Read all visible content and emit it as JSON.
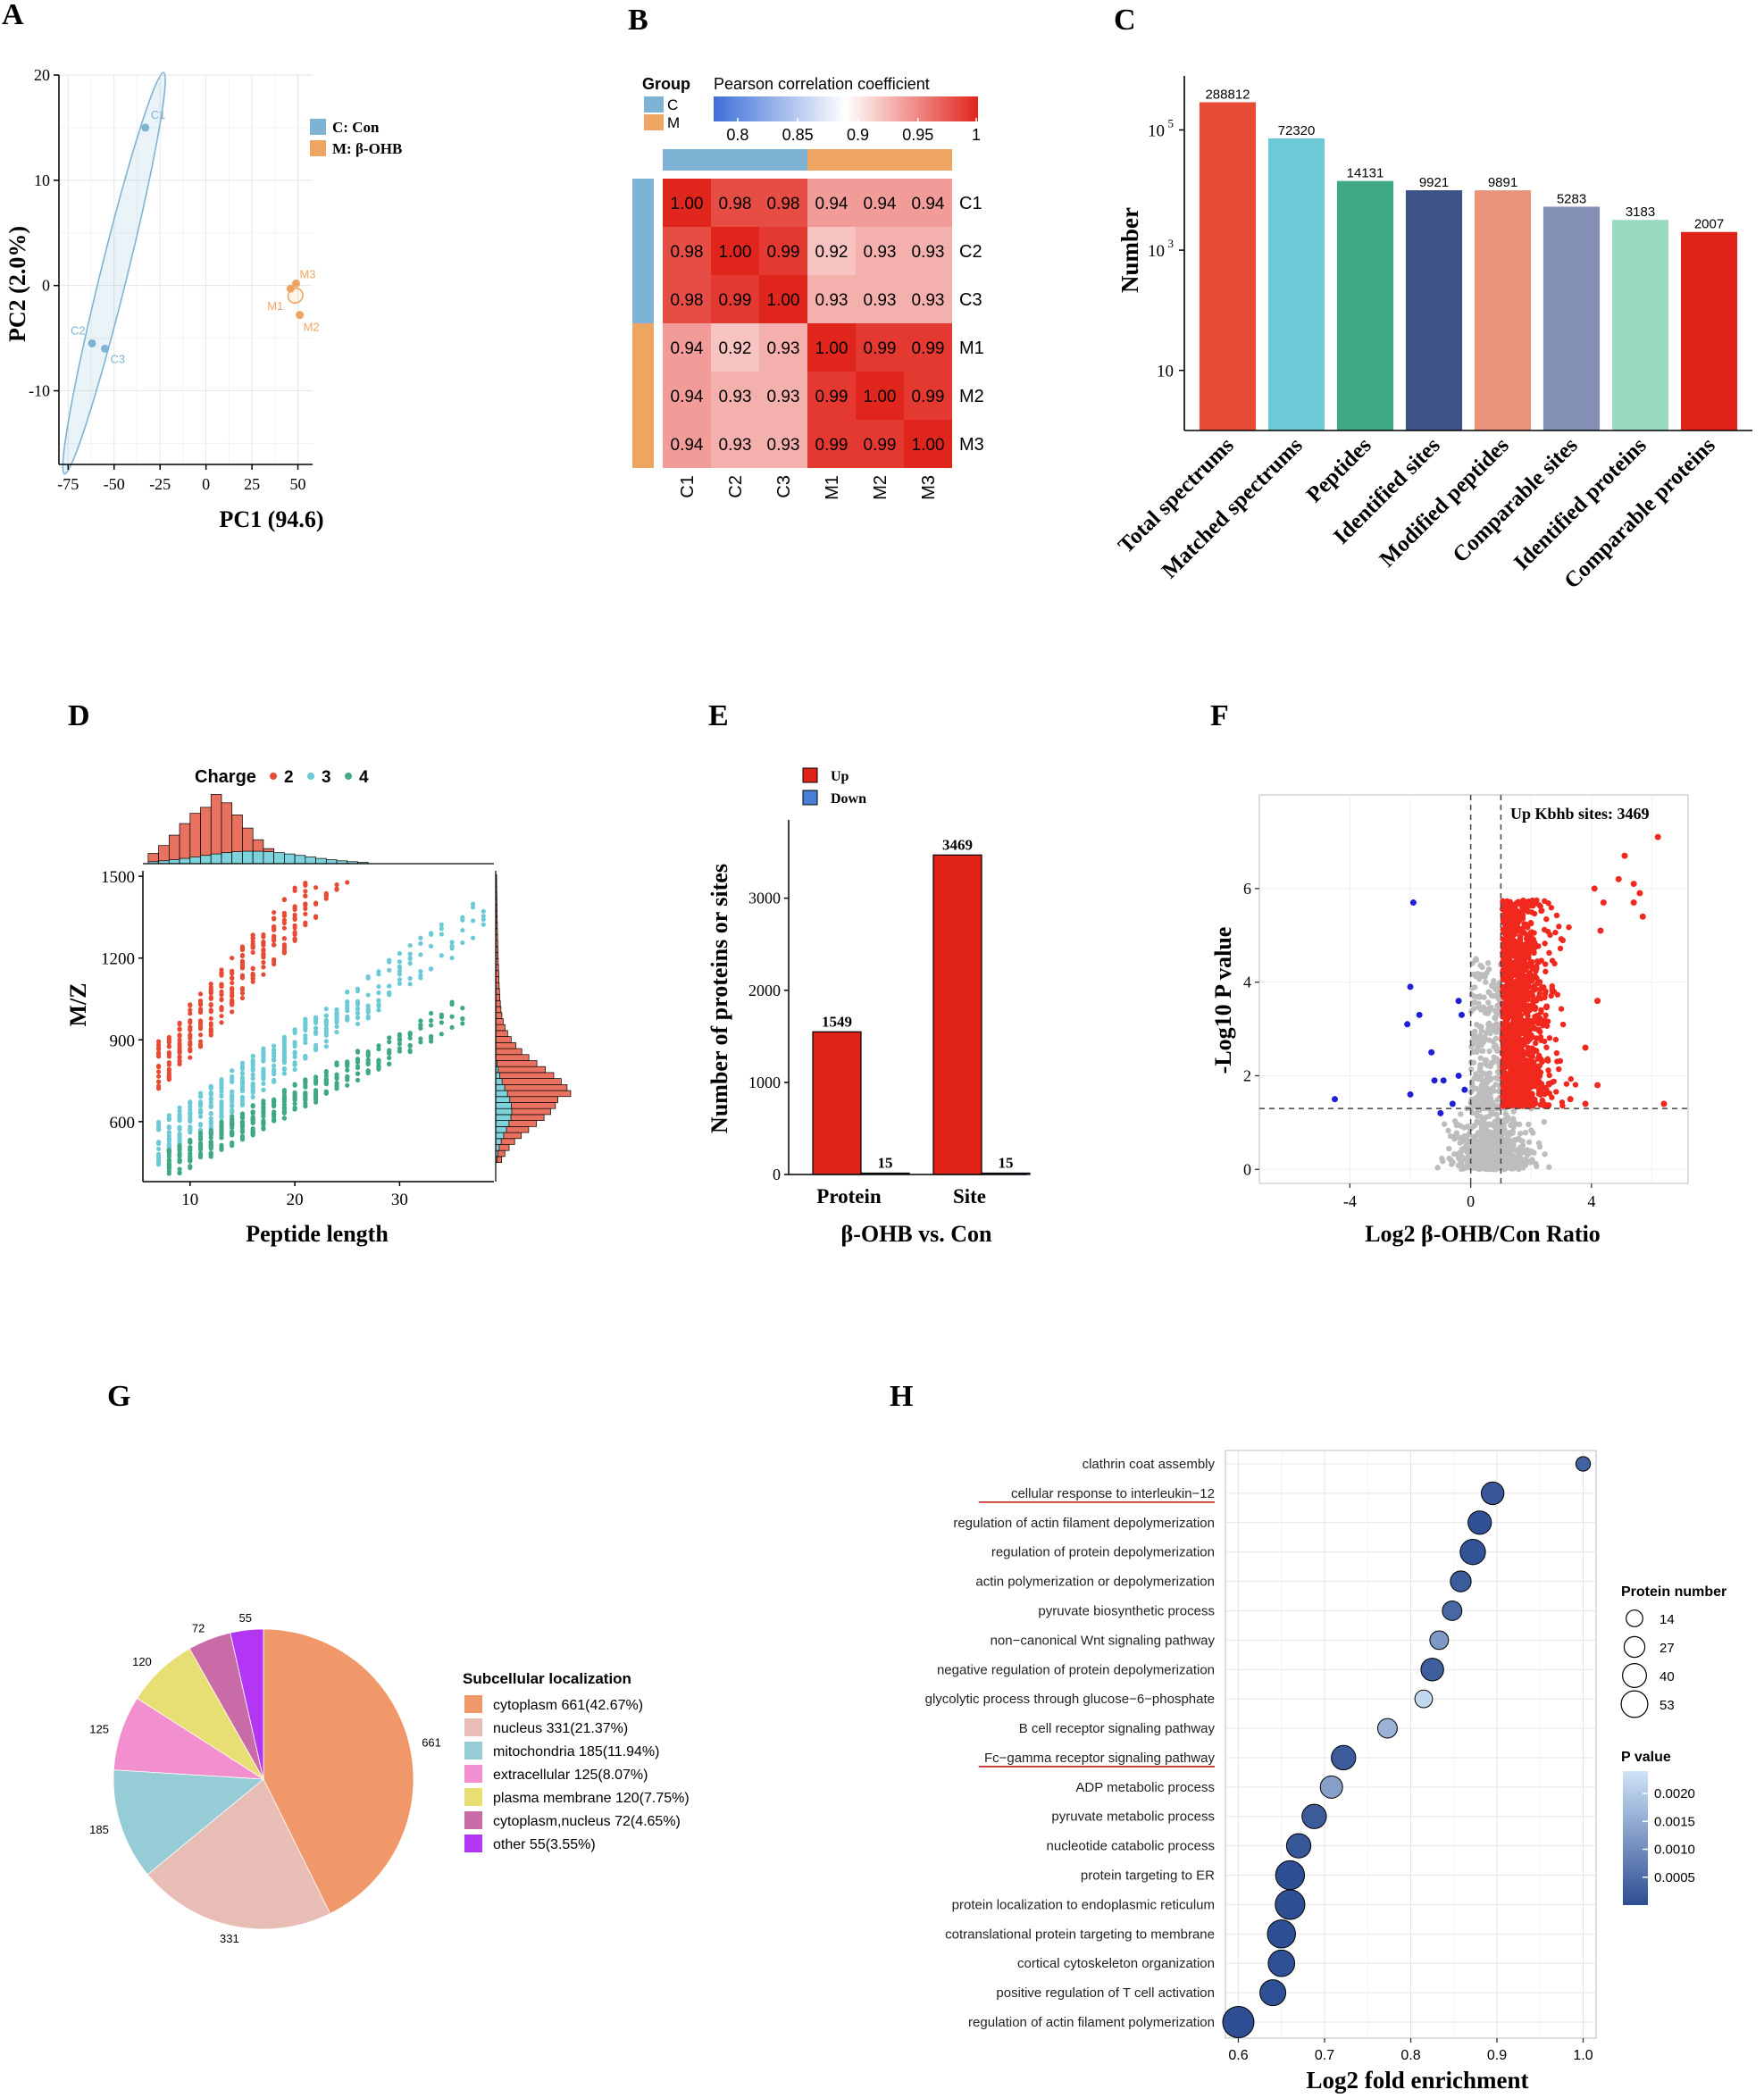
{
  "panels": {
    "A": {
      "letter": "A",
      "chart_data": {
        "type": "scatter",
        "xlabel": "PC1 (94.6)",
        "ylabel": "PC2 (2.0%)",
        "xlim": [
          -80,
          58
        ],
        "ylim": [
          -17,
          20
        ],
        "xticks": [
          -75,
          -50,
          -25,
          0,
          25,
          50
        ],
        "yticks": [
          -10,
          0,
          10,
          20
        ],
        "legend": [
          {
            "label": "C: Con",
            "color": "#7FB3D5"
          },
          {
            "label": "M: β-OHB",
            "color": "#EFA562"
          }
        ],
        "points": [
          {
            "name": "C1",
            "x": -33,
            "y": 15,
            "group": 0
          },
          {
            "name": "C2",
            "x": -62,
            "y": -5.5,
            "group": 0
          },
          {
            "name": "C3",
            "x": -55,
            "y": -6,
            "group": 0
          },
          {
            "name": "M1",
            "x": 46,
            "y": -0.3,
            "group": 1
          },
          {
            "name": "M3",
            "x": 49,
            "y": 0.2,
            "group": 1
          },
          {
            "name": "M2",
            "x": 51,
            "y": -2.8,
            "group": 1
          }
        ],
        "label_color_C": "#7FB3D5",
        "label_color_M": "#EFA562"
      }
    },
    "B": {
      "letter": "B",
      "chart_data": {
        "type": "heatmap",
        "title": "Pearson correlation coefficient",
        "group_title": "Group",
        "groups": [
          {
            "label": "C",
            "color": "#7FB3D5"
          },
          {
            "label": "M",
            "color": "#EFA562"
          }
        ],
        "colorbar_ticks": [
          "0.8",
          "0.85",
          "0.9",
          "0.95",
          "1"
        ],
        "rows": [
          "C1",
          "C2",
          "C3",
          "M1",
          "M2",
          "M3"
        ],
        "cols": [
          "C1",
          "C2",
          "C3",
          "M1",
          "M2",
          "M3"
        ],
        "values": [
          [
            "1.00",
            "0.98",
            "0.98",
            "0.94",
            "0.94",
            "0.94"
          ],
          [
            "0.98",
            "1.00",
            "0.99",
            "0.92",
            "0.93",
            "0.93"
          ],
          [
            "0.98",
            "0.99",
            "1.00",
            "0.93",
            "0.93",
            "0.93"
          ],
          [
            "0.94",
            "0.92",
            "0.93",
            "1.00",
            "0.99",
            "0.99"
          ],
          [
            "0.94",
            "0.93",
            "0.93",
            "0.99",
            "1.00",
            "0.99"
          ],
          [
            "0.94",
            "0.93",
            "0.93",
            "0.99",
            "0.99",
            "1.00"
          ]
        ]
      }
    },
    "C": {
      "letter": "C",
      "chart_data": {
        "type": "bar",
        "ylabel": "Number",
        "yscale": "log",
        "ytick_labels": [
          {
            "base": "10",
            "exp": "5",
            "value": 100000
          },
          {
            "base": "10",
            "exp": "3",
            "value": 1000
          },
          {
            "base": "10",
            "exp": "",
            "value": 10
          }
        ],
        "categories": [
          "Total spectrums",
          "Matched spectrums",
          "Peptides",
          "Identified sites",
          "Modified peptides",
          "Comparable sites",
          "Identified proteins",
          "Comparable proteins"
        ],
        "values": [
          288812,
          72320,
          14131,
          9921,
          9891,
          5283,
          3183,
          2007
        ],
        "value_labels": [
          "288812",
          "72320",
          "14131",
          "9921",
          "9891",
          "5283",
          "3183",
          "2007"
        ],
        "colors": [
          "#E64B35",
          "#6CCAD6",
          "#3FA886",
          "#3C5488",
          "#E8937A",
          "#8491B4",
          "#98DAC0",
          "#E02318"
        ]
      }
    },
    "D": {
      "letter": "D",
      "chart_data": {
        "type": "scatter",
        "xlabel": "Peptide length",
        "ylabel": "M/Z",
        "legend_title": "Charge",
        "series": [
          {
            "name": "2",
            "color": "#E64B35",
            "x_range": [
              7,
              25
            ]
          },
          {
            "name": "3",
            "color": "#6CCAD6",
            "x_range": [
              7,
              38
            ]
          },
          {
            "name": "4",
            "color": "#3FA886",
            "x_range": [
              8,
              36
            ]
          }
        ],
        "xticks": [
          "10",
          "20",
          "30"
        ],
        "yticks": [
          "600",
          "900",
          "1200",
          "1500"
        ],
        "xlim": [
          5.5,
          39
        ],
        "ylim": [
          380,
          1520
        ]
      }
    },
    "E": {
      "letter": "E",
      "chart_data": {
        "type": "bar",
        "xlabel": "β-OHB vs. Con",
        "ylabel": "Number of proteins or sites",
        "categories": [
          "Protein",
          "Site"
        ],
        "series": [
          {
            "name": "Up",
            "color": "#E02318",
            "values": [
              1549,
              3469
            ]
          },
          {
            "name": "Down",
            "color": "#4A7FD9",
            "values": [
              15,
              15
            ]
          }
        ],
        "value_labels": [
          [
            "1549",
            "3469"
          ],
          [
            "15",
            "15"
          ]
        ],
        "yticks": [
          "0",
          "1000",
          "2000",
          "3000"
        ],
        "ylim": [
          0,
          3850
        ]
      }
    },
    "F": {
      "letter": "F",
      "chart_data": {
        "type": "scatter",
        "title": "Up Kbhb sites: 3469",
        "xlabel": "Log2 β-OHB/Con Ratio",
        "ylabel": "-Log10 P value",
        "xticks": [
          "-4",
          "0",
          "4"
        ],
        "yticks": [
          "0",
          "2",
          "4",
          "6"
        ],
        "xlim": [
          -7,
          7.2
        ],
        "ylim": [
          -0.3,
          8
        ],
        "thresholds": {
          "x": [
            0,
            1
          ],
          "y": 1.3
        },
        "down_points": [
          [
            -1.9,
            5.7
          ],
          [
            -2.0,
            3.9
          ],
          [
            -2.1,
            3.1
          ],
          [
            -1.7,
            3.3
          ],
          [
            -0.4,
            3.6
          ],
          [
            -0.3,
            3.3
          ],
          [
            -1.3,
            2.5
          ],
          [
            -4.5,
            1.5
          ],
          [
            -2.0,
            1.6
          ],
          [
            -1.2,
            1.9
          ],
          [
            -0.9,
            1.9
          ],
          [
            -1.0,
            1.2
          ],
          [
            -0.4,
            2.0
          ],
          [
            -0.6,
            1.4
          ],
          [
            -0.2,
            1.7
          ]
        ],
        "up_outliers": [
          [
            6.2,
            7.1
          ],
          [
            5.1,
            6.7
          ],
          [
            4.9,
            6.2
          ],
          [
            5.4,
            6.1
          ],
          [
            5.6,
            5.9
          ],
          [
            5.4,
            5.7
          ],
          [
            4.1,
            6.0
          ],
          [
            4.4,
            5.7
          ],
          [
            4.3,
            5.1
          ],
          [
            4.2,
            3.6
          ],
          [
            3.8,
            2.6
          ],
          [
            4.2,
            1.8
          ],
          [
            3.8,
            1.4
          ],
          [
            3.3,
            1.5
          ],
          [
            6.4,
            1.4
          ],
          [
            5.7,
            5.4
          ]
        ]
      }
    },
    "G": {
      "letter": "G",
      "chart_data": {
        "type": "pie",
        "legend_title": "Subcellular localization",
        "slices": [
          {
            "label": "cytoplasm 661(42.67%)",
            "value": 661,
            "value_label": "661",
            "color": "#F0986A"
          },
          {
            "label": "nucleus 331(21.37%)",
            "value": 331,
            "value_label": "331",
            "color": "#E8BDB5"
          },
          {
            "label": "mitochondria 185(11.94%)",
            "value": 185,
            "value_label": "185",
            "color": "#96CCD6"
          },
          {
            "label": "extracellular 125(8.07%)",
            "value": 125,
            "value_label": "125",
            "color": "#F28FCF"
          },
          {
            "label": "plasma membrane 120(7.75%)",
            "value": 120,
            "value_label": "120",
            "color": "#E8DF74"
          },
          {
            "label": "cytoplasm,nucleus 72(4.65%)",
            "value": 72,
            "value_label": "72",
            "color": "#C86BA6"
          },
          {
            "label": "other 55(3.55%)",
            "value": 55,
            "value_label": "55",
            "color": "#B336F5"
          }
        ]
      }
    },
    "H": {
      "letter": "H",
      "chart_data": {
        "type": "scatter",
        "xlabel": "Log2 fold enrichment",
        "xticks": [
          "0.6",
          "0.7",
          "0.8",
          "0.9",
          "1.0"
        ],
        "xlim": [
          0.585,
          1.015
        ],
        "size_legend_title": "Protein number",
        "size_legend": [
          "14",
          "27",
          "40",
          "53"
        ],
        "color_legend_title": "P value",
        "color_ticks": [
          "0.0020",
          "0.0015",
          "0.0010",
          "0.0005"
        ],
        "terms": [
          {
            "label": "clathrin coat assembly",
            "x": 1.0,
            "n": 5,
            "p": 0.0003,
            "underline": false
          },
          {
            "label": "cellular response to interleukin−12",
            "x": 0.895,
            "n": 22,
            "p": 0.00015,
            "underline": true
          },
          {
            "label": "regulation of actin filament depolymerization",
            "x": 0.88,
            "n": 24,
            "p": 5e-05,
            "underline": false
          },
          {
            "label": "regulation of protein depolymerization",
            "x": 0.872,
            "n": 30,
            "p": 8e-05,
            "underline": false
          },
          {
            "label": "actin polymerization or depolymerization",
            "x": 0.858,
            "n": 17,
            "p": 0.0002,
            "underline": false
          },
          {
            "label": "pyruvate biosynthetic process",
            "x": 0.848,
            "n": 14,
            "p": 0.0004,
            "underline": false
          },
          {
            "label": "non−canonical Wnt signaling pathway",
            "x": 0.833,
            "n": 12,
            "p": 0.0012,
            "underline": false
          },
          {
            "label": "negative regulation of protein depolymerization",
            "x": 0.825,
            "n": 22,
            "p": 0.00025,
            "underline": false
          },
          {
            "label": "glycolytic process through glucose−6−phosphate",
            "x": 0.815,
            "n": 10,
            "p": 0.0022,
            "underline": false
          },
          {
            "label": "B cell receptor signaling pathway",
            "x": 0.773,
            "n": 14,
            "p": 0.0016,
            "underline": false
          },
          {
            "label": "Fc−gamma receptor signaling pathway",
            "x": 0.722,
            "n": 27,
            "p": 0.0002,
            "underline": true
          },
          {
            "label": "ADP metabolic process",
            "x": 0.708,
            "n": 21,
            "p": 0.0013,
            "underline": false
          },
          {
            "label": "pyruvate metabolic process",
            "x": 0.688,
            "n": 27,
            "p": 0.0002,
            "underline": false
          },
          {
            "label": "nucleotide catabolic process",
            "x": 0.67,
            "n": 27,
            "p": 0.00015,
            "underline": false
          },
          {
            "label": "protein targeting to ER",
            "x": 0.66,
            "n": 43,
            "p": 2e-05,
            "underline": false
          },
          {
            "label": "protein localization to endoplasmic reticulum",
            "x": 0.66,
            "n": 46,
            "p": 2e-05,
            "underline": false
          },
          {
            "label": "cotranslational protein targeting to membrane",
            "x": 0.65,
            "n": 40,
            "p": 2e-05,
            "underline": false
          },
          {
            "label": "cortical cytoskeleton organization",
            "x": 0.65,
            "n": 34,
            "p": 3e-05,
            "underline": false
          },
          {
            "label": "positive regulation of T cell activation",
            "x": 0.64,
            "n": 32,
            "p": 3e-05,
            "underline": false
          },
          {
            "label": "regulation of actin filament polymerization",
            "x": 0.6,
            "n": 53,
            "p": 1e-05,
            "underline": false
          }
        ]
      }
    }
  }
}
